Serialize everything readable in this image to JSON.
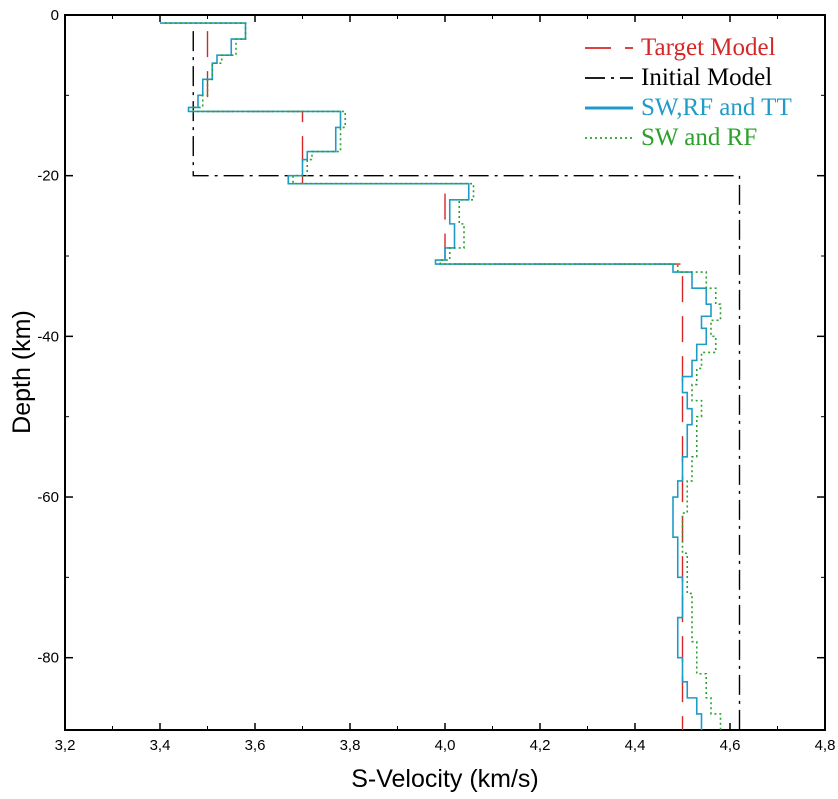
{
  "chart_data": {
    "type": "line",
    "title": "",
    "xlabel": "S-Velocity (km/s)",
    "ylabel": "Depth (km)",
    "xlim": [
      3.2,
      4.8
    ],
    "ylim": [
      -89,
      0
    ],
    "x_ticks": [
      3.2,
      3.4,
      3.6,
      3.8,
      4.0,
      4.2,
      4.4,
      4.6,
      4.8
    ],
    "x_tick_labels": [
      "3,2",
      "3,4",
      "3,6",
      "3,8",
      "4,0",
      "4,2",
      "4,4",
      "4,6",
      "4,8"
    ],
    "y_ticks": [
      0,
      -20,
      -40,
      -60,
      -80
    ],
    "y_tick_labels": [
      "0",
      "-20",
      "-40",
      "-60",
      "-80"
    ],
    "legend_position": "top-right",
    "series": [
      {
        "name": "Target Model",
        "color": "#d62728",
        "style": "dashed",
        "steps": [
          {
            "v": 3.5,
            "top": -2,
            "bottom": -12
          },
          {
            "v": 3.7,
            "top": -12,
            "bottom": -21
          },
          {
            "v": 4.0,
            "top": -21,
            "bottom": -31
          },
          {
            "v": 4.5,
            "top": -31,
            "bottom": -89
          }
        ]
      },
      {
        "name": "Initial Model",
        "color": "#000000",
        "style": "dashdot",
        "steps": [
          {
            "v": 3.47,
            "top": -2,
            "bottom": -20
          },
          {
            "v": 4.62,
            "top": -20,
            "bottom": -89
          }
        ]
      },
      {
        "name": "SW,RF and TT",
        "color": "#1f9bc8",
        "style": "solid",
        "points": [
          [
            3.4,
            -1
          ],
          [
            3.58,
            -1
          ],
          [
            3.58,
            -3
          ],
          [
            3.55,
            -3
          ],
          [
            3.55,
            -5
          ],
          [
            3.52,
            -5
          ],
          [
            3.52,
            -6
          ],
          [
            3.51,
            -6
          ],
          [
            3.51,
            -8
          ],
          [
            3.49,
            -8
          ],
          [
            3.49,
            -10
          ],
          [
            3.48,
            -10
          ],
          [
            3.48,
            -11.5
          ],
          [
            3.46,
            -11.5
          ],
          [
            3.46,
            -12
          ],
          [
            3.78,
            -12
          ],
          [
            3.78,
            -14
          ],
          [
            3.77,
            -14
          ],
          [
            3.77,
            -17
          ],
          [
            3.71,
            -17
          ],
          [
            3.71,
            -18
          ],
          [
            3.7,
            -18
          ],
          [
            3.7,
            -20
          ],
          [
            3.67,
            -20
          ],
          [
            3.67,
            -21
          ],
          [
            4.05,
            -21
          ],
          [
            4.05,
            -23
          ],
          [
            4.01,
            -23
          ],
          [
            4.01,
            -26
          ],
          [
            4.02,
            -26
          ],
          [
            4.02,
            -29
          ],
          [
            4.0,
            -29
          ],
          [
            4.0,
            -30.5
          ],
          [
            3.98,
            -30.5
          ],
          [
            3.98,
            -31
          ],
          [
            4.48,
            -31
          ],
          [
            4.48,
            -32
          ],
          [
            4.52,
            -32
          ],
          [
            4.52,
            -34
          ],
          [
            4.55,
            -34
          ],
          [
            4.55,
            -36
          ],
          [
            4.56,
            -36
          ],
          [
            4.56,
            -37.5
          ],
          [
            4.54,
            -37.5
          ],
          [
            4.54,
            -39
          ],
          [
            4.55,
            -39
          ],
          [
            4.55,
            -41
          ],
          [
            4.53,
            -41
          ],
          [
            4.53,
            -43
          ],
          [
            4.52,
            -43
          ],
          [
            4.52,
            -45
          ],
          [
            4.5,
            -45
          ],
          [
            4.5,
            -47
          ],
          [
            4.51,
            -47
          ],
          [
            4.51,
            -49
          ],
          [
            4.52,
            -49
          ],
          [
            4.52,
            -51
          ],
          [
            4.51,
            -51
          ],
          [
            4.51,
            -55
          ],
          [
            4.5,
            -55
          ],
          [
            4.5,
            -58
          ],
          [
            4.49,
            -58
          ],
          [
            4.49,
            -60
          ],
          [
            4.48,
            -60
          ],
          [
            4.48,
            -65
          ],
          [
            4.49,
            -65
          ],
          [
            4.49,
            -70
          ],
          [
            4.5,
            -70
          ],
          [
            4.5,
            -75
          ],
          [
            4.49,
            -75
          ],
          [
            4.49,
            -80
          ],
          [
            4.5,
            -80
          ],
          [
            4.5,
            -83
          ],
          [
            4.51,
            -83
          ],
          [
            4.51,
            -85
          ],
          [
            4.53,
            -85
          ],
          [
            4.53,
            -87
          ],
          [
            4.54,
            -87
          ],
          [
            4.54,
            -89
          ]
        ]
      },
      {
        "name": "SW and RF",
        "color": "#2ca02c",
        "style": "dotted",
        "points": [
          [
            3.41,
            -1
          ],
          [
            3.58,
            -1
          ],
          [
            3.58,
            -3
          ],
          [
            3.56,
            -3
          ],
          [
            3.56,
            -5
          ],
          [
            3.53,
            -5
          ],
          [
            3.53,
            -6
          ],
          [
            3.51,
            -6
          ],
          [
            3.51,
            -8
          ],
          [
            3.5,
            -8
          ],
          [
            3.5,
            -10
          ],
          [
            3.49,
            -10
          ],
          [
            3.49,
            -11.5
          ],
          [
            3.47,
            -11.5
          ],
          [
            3.47,
            -12
          ],
          [
            3.79,
            -12
          ],
          [
            3.79,
            -14
          ],
          [
            3.78,
            -14
          ],
          [
            3.78,
            -17
          ],
          [
            3.72,
            -17
          ],
          [
            3.72,
            -18
          ],
          [
            3.71,
            -18
          ],
          [
            3.71,
            -20
          ],
          [
            3.68,
            -20
          ],
          [
            3.68,
            -21
          ],
          [
            4.06,
            -21
          ],
          [
            4.06,
            -23
          ],
          [
            4.03,
            -23
          ],
          [
            4.03,
            -26
          ],
          [
            4.04,
            -26
          ],
          [
            4.04,
            -29
          ],
          [
            4.01,
            -29
          ],
          [
            4.01,
            -30.5
          ],
          [
            3.99,
            -30.5
          ],
          [
            3.99,
            -31
          ],
          [
            4.49,
            -31
          ],
          [
            4.49,
            -32
          ],
          [
            4.55,
            -32
          ],
          [
            4.55,
            -34
          ],
          [
            4.57,
            -34
          ],
          [
            4.57,
            -36
          ],
          [
            4.58,
            -36
          ],
          [
            4.58,
            -38
          ],
          [
            4.56,
            -38
          ],
          [
            4.56,
            -40
          ],
          [
            4.57,
            -40
          ],
          [
            4.57,
            -42
          ],
          [
            4.54,
            -42
          ],
          [
            4.54,
            -44
          ],
          [
            4.53,
            -44
          ],
          [
            4.53,
            -46
          ],
          [
            4.52,
            -46
          ],
          [
            4.52,
            -48
          ],
          [
            4.54,
            -48
          ],
          [
            4.54,
            -50
          ],
          [
            4.53,
            -50
          ],
          [
            4.53,
            -55
          ],
          [
            4.52,
            -55
          ],
          [
            4.52,
            -58
          ],
          [
            4.51,
            -58
          ],
          [
            4.51,
            -62
          ],
          [
            4.5,
            -62
          ],
          [
            4.5,
            -67
          ],
          [
            4.51,
            -67
          ],
          [
            4.51,
            -72
          ],
          [
            4.52,
            -72
          ],
          [
            4.52,
            -78
          ],
          [
            4.53,
            -78
          ],
          [
            4.53,
            -82
          ],
          [
            4.55,
            -82
          ],
          [
            4.55,
            -85
          ],
          [
            4.56,
            -85
          ],
          [
            4.56,
            -87
          ],
          [
            4.58,
            -87
          ],
          [
            4.58,
            -89
          ]
        ]
      }
    ]
  }
}
